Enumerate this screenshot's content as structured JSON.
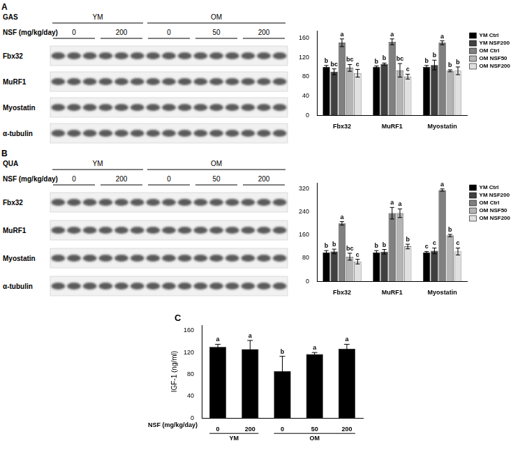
{
  "panel_labels": [
    "A",
    "B",
    "C"
  ],
  "blots": [
    {
      "tissue": "GAS",
      "dose_label": "NSF (mg/kg/day)",
      "groups": [
        {
          "label": "YM",
          "doses": [
            "0",
            "200"
          ]
        },
        {
          "label": "OM",
          "doses": [
            "0",
            "50",
            "200"
          ]
        }
      ],
      "rows": [
        "Fbx32",
        "MuRF1",
        "Myostatin",
        "α-tubulin"
      ]
    },
    {
      "tissue": "QUA",
      "dose_label": "NSF (mg/kg/day)",
      "groups": [
        {
          "label": "YM",
          "doses": [
            "0",
            "200"
          ]
        },
        {
          "label": "OM",
          "doses": [
            "0",
            "50",
            "200"
          ]
        }
      ],
      "rows": [
        "Fbx32",
        "MuRF1",
        "Myostatin",
        "α-tubulin"
      ]
    }
  ],
  "chart_data": [
    {
      "type": "bar",
      "categories": [
        "Fbx32",
        "MuRF1",
        "Myostatin"
      ],
      "series": [
        {
          "name": "YM Ctrl",
          "color": "#000000",
          "values": [
            100,
            100,
            100
          ],
          "errors": [
            3,
            2,
            3
          ],
          "annotations": [
            "b",
            "b",
            "b"
          ]
        },
        {
          "name": "YM NSF200",
          "color": "#404040",
          "values": [
            90,
            106,
            104
          ],
          "errors": [
            6,
            2,
            10
          ],
          "annotations": [
            "bc",
            "b",
            "b"
          ]
        },
        {
          "name": "OM Ctrl",
          "color": "#808080",
          "values": [
            150,
            152,
            150
          ],
          "errors": [
            8,
            6,
            4
          ],
          "annotations": [
            "a",
            "a",
            "a"
          ]
        },
        {
          "name": "OM NSF50",
          "color": "#b4b4b4",
          "values": [
            98,
            93,
            92
          ],
          "errors": [
            7,
            14,
            2
          ],
          "annotations": [
            "bc",
            "bc",
            "b"
          ]
        },
        {
          "name": "OM NSF200",
          "color": "#e0e0e0",
          "values": [
            87,
            80,
            92
          ],
          "errors": [
            8,
            5,
            8
          ],
          "annotations": [
            "c",
            "c",
            "b"
          ]
        }
      ],
      "ylim": [
        0,
        175
      ],
      "yticks": [
        0,
        40,
        80,
        120,
        160
      ],
      "grid": false,
      "legend": "right"
    },
    {
      "type": "bar",
      "categories": [
        "Fbx32",
        "MuRF1",
        "Myostatin"
      ],
      "series": [
        {
          "name": "YM Ctrl",
          "color": "#000000",
          "values": [
            100,
            100,
            100
          ],
          "errors": [
            6,
            6,
            3
          ],
          "annotations": [
            "b",
            "b",
            "c"
          ]
        },
        {
          "name": "YM NSF200",
          "color": "#404040",
          "values": [
            103,
            102,
            105
          ],
          "errors": [
            8,
            8,
            10
          ],
          "annotations": [
            "b",
            "b",
            "c"
          ]
        },
        {
          "name": "OM Ctrl",
          "color": "#808080",
          "values": [
            200,
            235,
            315
          ],
          "errors": [
            6,
            20,
            4
          ],
          "annotations": [
            "a",
            "a",
            "a"
          ]
        },
        {
          "name": "OM NSF50",
          "color": "#b4b4b4",
          "values": [
            85,
            235,
            158
          ],
          "errors": [
            12,
            15,
            4
          ],
          "annotations": [
            "bc",
            "a",
            "b"
          ]
        },
        {
          "name": "OM NSF200",
          "color": "#e0e0e0",
          "values": [
            68,
            120,
            103
          ],
          "errors": [
            8,
            8,
            12
          ],
          "annotations": [
            "c",
            "b",
            "c"
          ]
        }
      ],
      "ylim": [
        0,
        340
      ],
      "yticks": [
        0,
        80,
        160,
        240,
        320
      ],
      "grid": false,
      "legend": "right"
    },
    {
      "type": "bar",
      "categories": [
        "0",
        "200",
        "0",
        "50",
        "200"
      ],
      "values": [
        130,
        126,
        86,
        117,
        127
      ],
      "errors": [
        5,
        16,
        27,
        3,
        8
      ],
      "annotations": [
        "a",
        "a",
        "b",
        "a",
        "a"
      ],
      "color": "#000000",
      "y_label": "IGF-1 (ng/ml)",
      "x_label": "NSF (mg/kg/day)",
      "x_groups": [
        {
          "label": "YM",
          "count": 2
        },
        {
          "label": "OM",
          "count": 3
        }
      ],
      "ylim": [
        0,
        170
      ],
      "yticks": [
        0,
        40,
        80,
        120,
        160
      ],
      "grid": false
    }
  ]
}
